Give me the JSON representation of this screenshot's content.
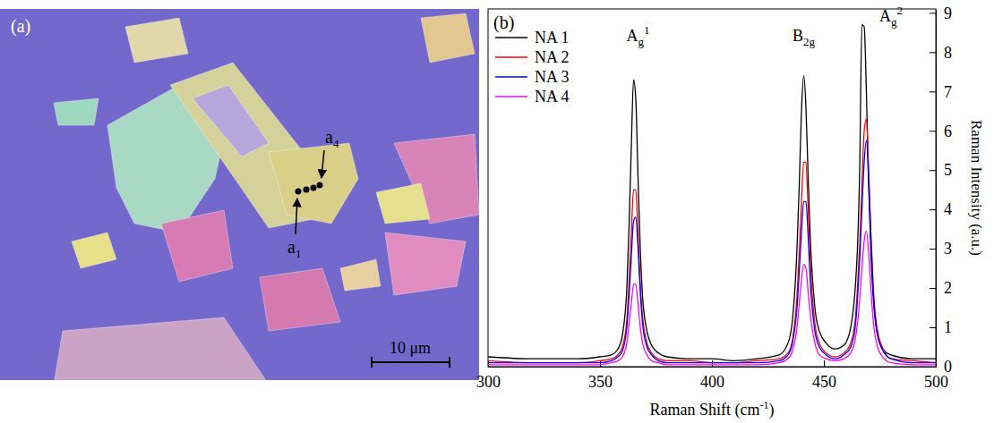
{
  "image": {
    "label": "(a)",
    "points": [
      {
        "base": "a",
        "sub": "1"
      },
      {
        "base": "a",
        "sub": "4"
      }
    ],
    "scale_bar": "10 μm"
  },
  "chart_data": {
    "type": "line",
    "panel_label": "(b)",
    "x_label": "Raman Shift (cm",
    "x_label_sup": "-1",
    "x_label_end": ")",
    "y_label": "Raman Intensity (a.u.)",
    "xlim": [
      300,
      500
    ],
    "xticks": [
      300,
      350,
      400,
      450,
      500
    ],
    "ylim": [
      0,
      9.1
    ],
    "yticks": [
      0,
      1,
      2,
      3,
      4,
      5,
      6,
      7,
      8,
      9
    ],
    "legend": "upper left",
    "annotations": [
      {
        "base": "A",
        "sub": "g",
        "sup": "1",
        "x": 367,
        "y": 8.28
      },
      {
        "base": "B",
        "sub": "2g",
        "sup": null,
        "x": 441,
        "y": 8.28
      },
      {
        "base": "A",
        "sub": "g",
        "sup": "2",
        "x": 480,
        "y": 8.78
      }
    ],
    "x": [
      300,
      320,
      340,
      350,
      355,
      358,
      360,
      362,
      363,
      364,
      365,
      366,
      367,
      368,
      369,
      371,
      373,
      376,
      380,
      390,
      400,
      410,
      420,
      430,
      434,
      436,
      438,
      439,
      440,
      441,
      442,
      443,
      444,
      446,
      448,
      451,
      455,
      459,
      462,
      464,
      465,
      466,
      467,
      468,
      469,
      470,
      471,
      472,
      474,
      477,
      480,
      490,
      500
    ],
    "series": [
      {
        "name": "NA 1",
        "color": "#000000",
        "values": [
          0.25,
          0.2,
          0.2,
          0.25,
          0.3,
          0.45,
          0.8,
          2.0,
          3.6,
          5.6,
          7.3,
          6.8,
          4.8,
          3.0,
          1.8,
          0.9,
          0.55,
          0.35,
          0.25,
          0.2,
          0.2,
          0.15,
          0.2,
          0.3,
          0.6,
          1.2,
          3.0,
          4.6,
          6.5,
          7.4,
          6.6,
          4.8,
          3.2,
          1.5,
          0.9,
          0.6,
          0.45,
          0.55,
          1.0,
          2.0,
          3.0,
          5.0,
          8.7,
          8.65,
          7.0,
          4.6,
          2.9,
          1.8,
          0.8,
          0.4,
          0.3,
          0.2,
          0.2
        ]
      },
      {
        "name": "NA 2",
        "color": "#ff0000",
        "values": [
          0.15,
          0.1,
          0.1,
          0.15,
          0.2,
          0.3,
          0.5,
          1.2,
          2.2,
          3.4,
          4.5,
          4.5,
          3.4,
          2.1,
          1.3,
          0.6,
          0.35,
          0.2,
          0.15,
          0.15,
          0.1,
          0.1,
          0.15,
          0.2,
          0.35,
          0.7,
          1.8,
          2.9,
          4.2,
          5.2,
          5.2,
          4.0,
          2.6,
          1.1,
          0.6,
          0.35,
          0.25,
          0.35,
          0.6,
          1.2,
          2.0,
          3.1,
          4.6,
          6.0,
          6.3,
          5.0,
          3.4,
          2.1,
          0.9,
          0.4,
          0.2,
          0.15,
          0.1
        ]
      },
      {
        "name": "NA 3",
        "color": "#0000ff",
        "values": [
          0.1,
          0.1,
          0.1,
          0.1,
          0.15,
          0.25,
          0.4,
          1.0,
          1.8,
          2.8,
          3.7,
          3.8,
          3.0,
          1.9,
          1.1,
          0.5,
          0.3,
          0.15,
          0.1,
          0.1,
          0.1,
          0.1,
          0.1,
          0.15,
          0.3,
          0.6,
          1.5,
          2.4,
          3.4,
          4.2,
          4.2,
          3.3,
          2.1,
          0.9,
          0.5,
          0.3,
          0.2,
          0.3,
          0.5,
          1.0,
          1.7,
          2.7,
          4.0,
          5.2,
          5.75,
          4.8,
          3.3,
          2.0,
          0.8,
          0.35,
          0.2,
          0.1,
          0.1
        ]
      },
      {
        "name": "NA 4",
        "color": "#ff00ff",
        "values": [
          0.05,
          0.05,
          0.05,
          0.05,
          0.1,
          0.15,
          0.25,
          0.6,
          1.1,
          1.6,
          2.1,
          2.1,
          1.6,
          1.0,
          0.6,
          0.3,
          0.15,
          0.1,
          0.05,
          0.05,
          0.05,
          0.05,
          0.05,
          0.1,
          0.2,
          0.4,
          1.0,
          1.6,
          2.2,
          2.6,
          2.5,
          1.9,
          1.3,
          0.6,
          0.3,
          0.2,
          0.15,
          0.2,
          0.35,
          0.7,
          1.1,
          1.7,
          2.5,
          3.2,
          3.45,
          2.9,
          2.0,
          1.2,
          0.5,
          0.2,
          0.1,
          0.05,
          0.05
        ]
      }
    ]
  }
}
